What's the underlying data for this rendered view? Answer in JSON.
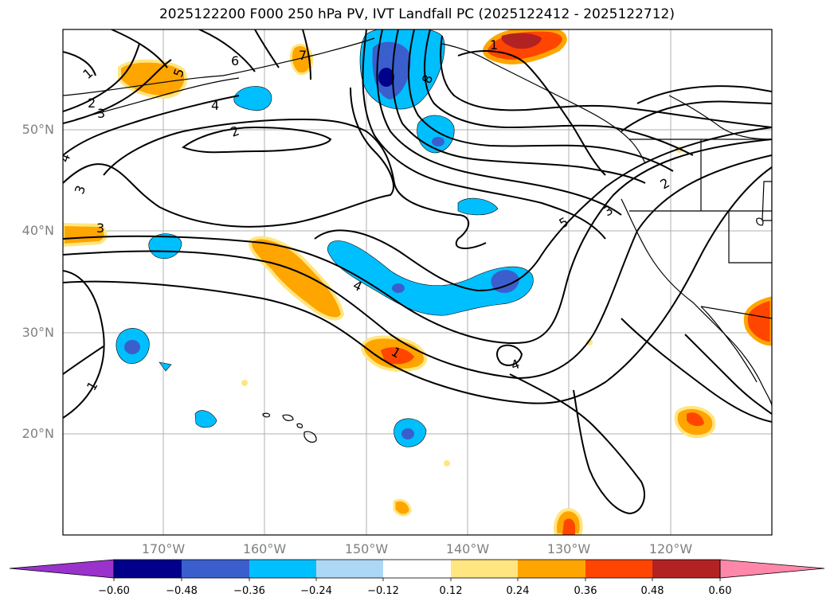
{
  "title": "2025122200 F000 250 hPa PV, IVT Landfall PC (2025122412 - 2025122712)",
  "map": {
    "lat_labels": [
      "50°N",
      "40°N",
      "30°N",
      "20°N"
    ],
    "lon_labels": [
      "170°W",
      "160°W",
      "150°W",
      "140°W",
      "130°W",
      "120°W"
    ],
    "contour_labels": [
      "1",
      "2",
      "3",
      "4",
      "5",
      "6",
      "7",
      "8",
      "2",
      "3",
      "4",
      "4",
      "1",
      "3",
      "5",
      "3",
      "2",
      "4",
      "1",
      "1"
    ]
  },
  "colorbar": {
    "tick_labels": [
      "−0.60",
      "−0.48",
      "−0.36",
      "−0.24",
      "−0.12",
      "0.12",
      "0.24",
      "0.36",
      "0.48",
      "0.60"
    ],
    "colors": [
      "#9933cc",
      "#00008b",
      "#3a5fcd",
      "#00bfff",
      "#add8f5",
      "#ffffff",
      "#ffe680",
      "#ffa500",
      "#ff4500",
      "#b22222",
      "#ff88aa"
    ]
  }
}
